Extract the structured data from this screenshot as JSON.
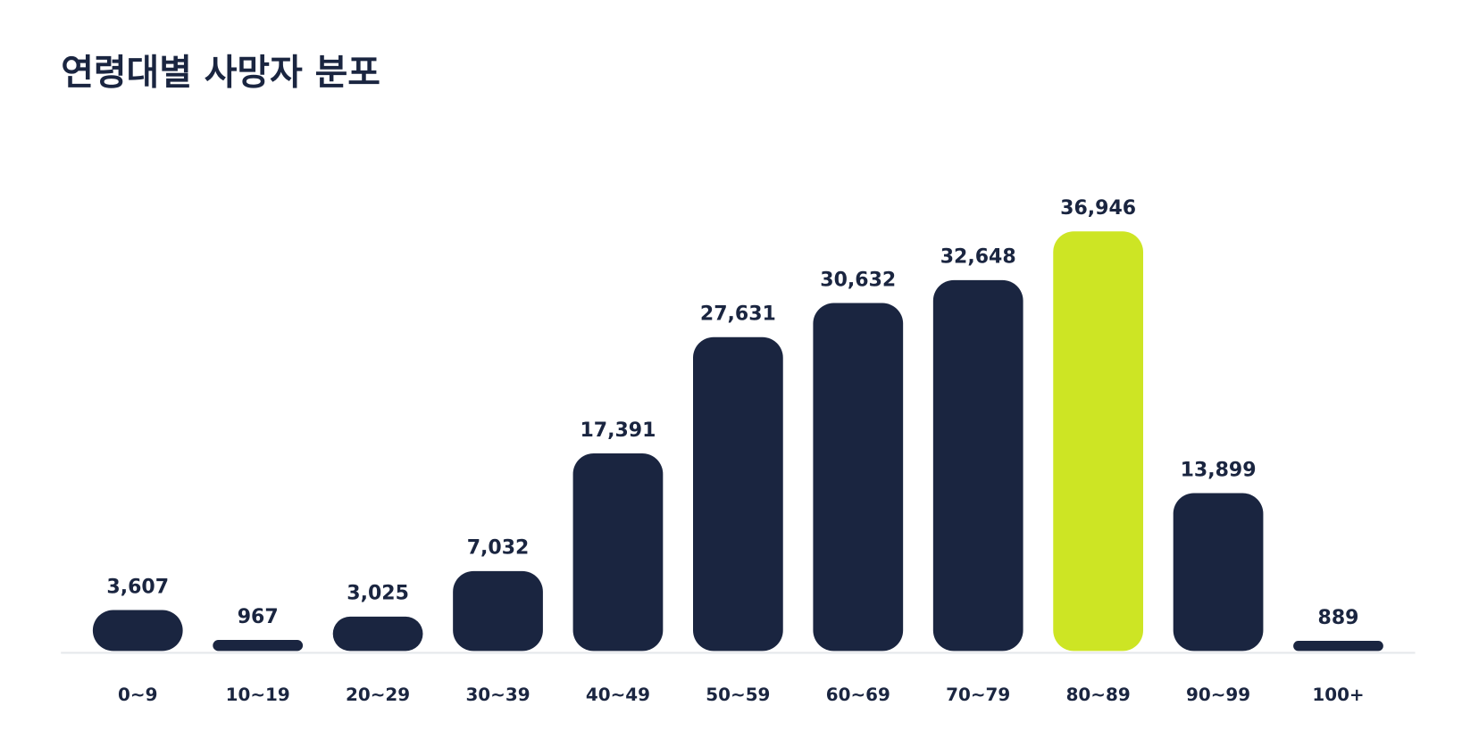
{
  "chart_data": {
    "type": "bar",
    "title": "연령대별 사망자 분포",
    "categories": [
      "0~9",
      "10~19",
      "20~29",
      "30~39",
      "40~49",
      "50~59",
      "60~69",
      "70~79",
      "80~89",
      "90~99",
      "100+"
    ],
    "values": [
      3607,
      967,
      3025,
      7032,
      17391,
      27631,
      30632,
      32648,
      36946,
      13899,
      889
    ],
    "value_labels": [
      "3,607",
      "967",
      "3,025",
      "7,032",
      "17,391",
      "27,631",
      "30,632",
      "32,648",
      "36,946",
      "13,899",
      "889"
    ],
    "colors": [
      "#1a2540",
      "#1a2540",
      "#1a2540",
      "#1a2540",
      "#1a2540",
      "#1a2540",
      "#1a2540",
      "#1a2540",
      "#cde524",
      "#1a2540",
      "#1a2540"
    ]
  }
}
